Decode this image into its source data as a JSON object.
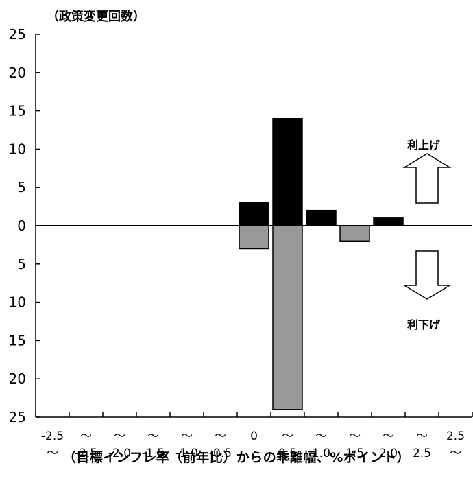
{
  "chart_data": {
    "type": "bar",
    "ylabel": "（政策変更回数）",
    "xlabel": "（目標インフレ率（前年比）からの乖離幅、%ポイント）",
    "y_tick_labels": [
      "25",
      "20",
      "15",
      "10",
      "5",
      "0",
      "5",
      "10",
      "15",
      "20",
      "25"
    ],
    "ylim": [
      -25,
      25
    ],
    "categories": [
      {
        "top": "-2.5",
        "bottom": "～"
      },
      {
        "top": "～",
        "bottom": "-2.5"
      },
      {
        "top": "～",
        "bottom": "-2.0"
      },
      {
        "top": "～",
        "bottom": "-1.5"
      },
      {
        "top": "～",
        "bottom": "-1.0"
      },
      {
        "top": "～",
        "bottom": "-0.5"
      },
      {
        "top": "0",
        "bottom": ""
      },
      {
        "top": "～",
        "bottom": "0.5"
      },
      {
        "top": "～",
        "bottom": "1.0"
      },
      {
        "top": "～",
        "bottom": "1.5"
      },
      {
        "top": "～",
        "bottom": "2.0"
      },
      {
        "top": "～",
        "bottom": "2.5"
      },
      {
        "top": "2.5",
        "bottom": "～"
      }
    ],
    "series": [
      {
        "values": [
          0,
          0,
          0,
          0,
          0,
          0,
          3,
          14,
          2,
          0,
          1,
          0,
          0
        ],
        "color": "#000000"
      },
      {
        "values": [
          0,
          0,
          0,
          0,
          0,
          0,
          -3,
          -24,
          0,
          -2,
          0,
          0,
          0
        ],
        "color": "#999999"
      }
    ],
    "annotations": {
      "up_label": "利上げ",
      "down_label": "利下げ"
    },
    "grid": false
  }
}
